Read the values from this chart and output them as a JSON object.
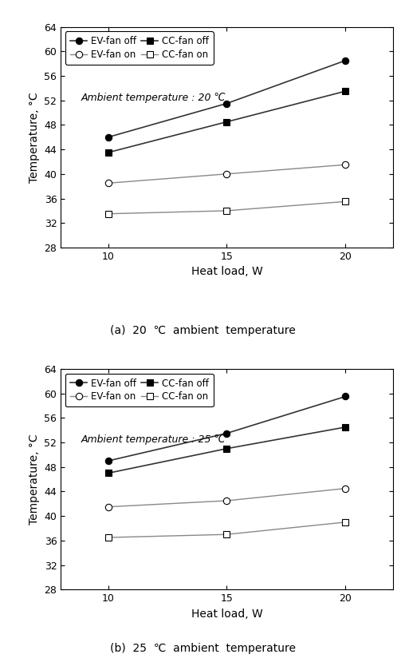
{
  "heat_load": [
    10,
    15,
    20
  ],
  "panel_a": {
    "ambient_text": "Ambient temperature : 20 ℃",
    "EV_fan_off": [
      46,
      51.5,
      58.5
    ],
    "EV_fan_on": [
      38.5,
      40,
      41.5
    ],
    "CC_fan_off": [
      43.5,
      48.5,
      53.5
    ],
    "CC_fan_on": [
      33.5,
      34,
      35.5
    ],
    "caption": "(a)  20  ℃  ambient  temperature"
  },
  "panel_b": {
    "ambient_text": "Ambient temperature : 25 ℃",
    "EV_fan_off": [
      49,
      53.5,
      59.5
    ],
    "EV_fan_on": [
      41.5,
      42.5,
      44.5
    ],
    "CC_fan_off": [
      47,
      51,
      54.5
    ],
    "CC_fan_on": [
      36.5,
      37,
      39
    ],
    "caption": "(b)  25  ℃  ambient  temperature"
  },
  "ylim": [
    28,
    64
  ],
  "yticks": [
    28,
    32,
    36,
    40,
    44,
    48,
    52,
    56,
    60,
    64
  ],
  "xlim": [
    8,
    22
  ],
  "xticks": [
    10,
    15,
    20
  ],
  "ylabel": "Temperature, °C",
  "xlabel": "Heat load, W",
  "legend_labels": [
    "EV-fan off",
    "EV-fan on",
    "CC-fan off",
    "CC-fan on"
  ],
  "lc_dark": "#333333",
  "lc_light": "#888888",
  "marker_size": 6,
  "font_size": 10,
  "caption_font_size": 10
}
